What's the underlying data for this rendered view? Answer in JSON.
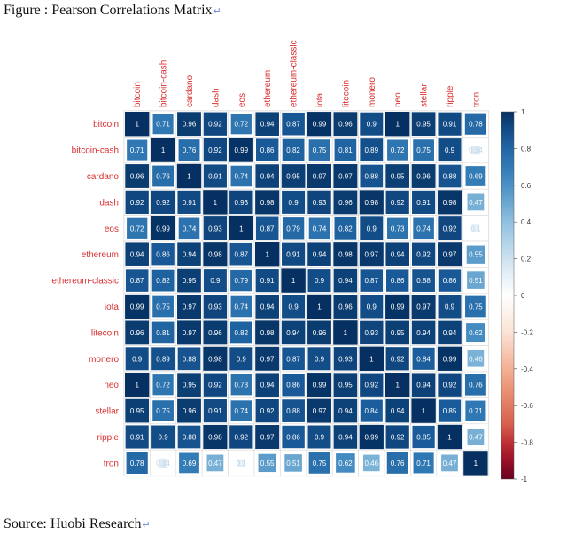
{
  "figure": {
    "title": "Figure : Pearson Correlations Matrix",
    "source": "Source: Huobi Research"
  },
  "colors": {
    "row_label": "#d93030",
    "col_label": "#d93030",
    "pos_strong": "#053061",
    "neutral": "#ffffff",
    "neg_strong": "#67001f"
  },
  "chart_data": {
    "type": "heatmap",
    "title": "",
    "labels": [
      "bitcoin",
      "bitcoin-cash",
      "cardano",
      "dash",
      "eos",
      "ethereum",
      "ethereum-classic",
      "iota",
      "litecoin",
      "monero",
      "neo",
      "stellar",
      "ripple",
      "tron"
    ],
    "matrix": [
      [
        1,
        0.71,
        0.96,
        0.92,
        0.72,
        0.94,
        0.87,
        0.99,
        0.96,
        0.9,
        1,
        0.95,
        0.91,
        0.78
      ],
      [
        0.71,
        1,
        0.76,
        0.92,
        0.99,
        0.86,
        0.82,
        0.75,
        0.81,
        0.89,
        0.72,
        0.75,
        0.9,
        0.14
      ],
      [
        0.96,
        0.76,
        1,
        0.91,
        0.74,
        0.94,
        0.95,
        0.97,
        0.97,
        0.88,
        0.95,
        0.96,
        0.88,
        0.69
      ],
      [
        0.92,
        0.92,
        0.91,
        1,
        0.93,
        0.98,
        0.9,
        0.93,
        0.96,
        0.98,
        0.92,
        0.91,
        0.98,
        0.47
      ],
      [
        0.72,
        0.99,
        0.74,
        0.93,
        1,
        0.87,
        0.79,
        0.74,
        0.82,
        0.9,
        0.73,
        0.74,
        0.92,
        0.1
      ],
      [
        0.94,
        0.86,
        0.94,
        0.98,
        0.87,
        1,
        0.91,
        0.94,
        0.98,
        0.97,
        0.94,
        0.92,
        0.97,
        0.55
      ],
      [
        0.87,
        0.82,
        0.95,
        0.9,
        0.79,
        0.91,
        1,
        0.9,
        0.94,
        0.87,
        0.86,
        0.88,
        0.86,
        0.51
      ],
      [
        0.99,
        0.75,
        0.97,
        0.93,
        0.74,
        0.94,
        0.9,
        1,
        0.96,
        0.9,
        0.99,
        0.97,
        0.9,
        0.75
      ],
      [
        0.96,
        0.81,
        0.97,
        0.96,
        0.82,
        0.98,
        0.94,
        0.96,
        1,
        0.93,
        0.95,
        0.94,
        0.94,
        0.62
      ],
      [
        0.9,
        0.89,
        0.88,
        0.98,
        0.9,
        0.97,
        0.87,
        0.9,
        0.93,
        1,
        0.92,
        0.84,
        0.99,
        0.46
      ],
      [
        1,
        0.72,
        0.95,
        0.92,
        0.73,
        0.94,
        0.86,
        0.99,
        0.95,
        0.92,
        1,
        0.94,
        0.92,
        0.76
      ],
      [
        0.95,
        0.75,
        0.96,
        0.91,
        0.74,
        0.92,
        0.88,
        0.97,
        0.94,
        0.84,
        0.94,
        1,
        0.85,
        0.71
      ],
      [
        0.91,
        0.9,
        0.88,
        0.98,
        0.92,
        0.97,
        0.86,
        0.9,
        0.94,
        0.99,
        0.92,
        0.85,
        1,
        0.47
      ],
      [
        0.78,
        0.14,
        0.69,
        0.47,
        0.1,
        0.55,
        0.51,
        0.75,
        0.62,
        0.46,
        0.76,
        0.71,
        0.47,
        1
      ]
    ],
    "colorbar": {
      "range": [
        -1,
        1
      ],
      "ticks": [
        "1",
        "0.8",
        "0.6",
        "0.4",
        "0.2",
        "0",
        "-0.2",
        "-0.4",
        "-0.6",
        "-0.8",
        "-1"
      ]
    },
    "xlabel": "",
    "ylabel": "",
    "grid": true
  }
}
